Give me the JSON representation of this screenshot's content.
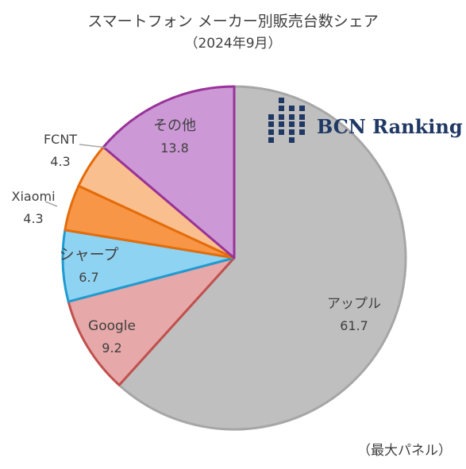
{
  "title": "スマートフォン メーカー別販売台数シェア",
  "subtitle": "（2024年9月）",
  "footnote": "（最大パネル）",
  "brand": {
    "text": "BCN Ranking",
    "color": "#203864",
    "logo_icon": "bcn-grid-logo-icon"
  },
  "chart_data": {
    "type": "pie",
    "title": "スマートフォン メーカー別販売台数シェア",
    "subtitle": "（2024年9月）",
    "start": "12 o'clock",
    "direction": "clockwise",
    "slices": [
      {
        "label": "アップル",
        "value": 61.7,
        "value_text": "61.7",
        "fill": "#bfbfbf",
        "stroke": "#a6a6a6"
      },
      {
        "label": "Google",
        "value": 9.2,
        "value_text": "9.2",
        "fill": "#e6a8a8",
        "stroke": "#c0504d"
      },
      {
        "label": "シャープ",
        "value": 6.7,
        "value_text": "6.7",
        "fill": "#8fd3f2",
        "stroke": "#1f9bd1"
      },
      {
        "label": "Xiaomi",
        "value": 4.3,
        "value_text": "4.3",
        "fill": "#f79646",
        "stroke": "#e46c0a"
      },
      {
        "label": "FCNT",
        "value": 4.3,
        "value_text": "4.3",
        "fill": "#f9bf8f",
        "stroke": "#e46c0a"
      },
      {
        "label": "その他",
        "value": 13.8,
        "value_text": "13.8",
        "fill": "#cc99d6",
        "stroke": "#993399"
      }
    ]
  }
}
